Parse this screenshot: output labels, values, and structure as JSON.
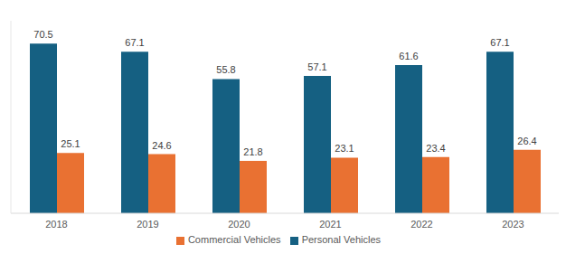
{
  "chart_data": {
    "type": "bar",
    "categories": [
      "2018",
      "2019",
      "2020",
      "2021",
      "2022",
      "2023"
    ],
    "series": [
      {
        "name": "Personal Vehicles",
        "color": "#156082",
        "values": [
          70.5,
          67.1,
          55.8,
          57.1,
          61.6,
          67.1
        ]
      },
      {
        "name": "Commercial Vehicles",
        "color": "#e97132",
        "values": [
          25.1,
          24.6,
          21.8,
          23.1,
          23.4,
          26.4
        ]
      }
    ],
    "ylim": [
      0,
      80
    ],
    "data_labels": true,
    "tick_labels": "x",
    "legend": "bottom",
    "grid": false
  }
}
